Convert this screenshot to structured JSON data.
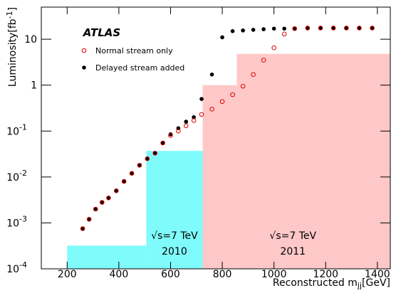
{
  "chart_data": {
    "type": "scatter",
    "annotation": "ATLAS",
    "x_label": {
      "text": "Reconstructed m",
      "sub": "jj",
      "unit": "[GeV]"
    },
    "y_label": {
      "text": "Luminosity[fb",
      "sup": "-1",
      "end": "]"
    },
    "xlim": [
      100,
      1450
    ],
    "xticks": [
      200,
      400,
      600,
      800,
      1000,
      1200,
      1400
    ],
    "ylim": [
      0.0001,
      50
    ],
    "log_y": true,
    "yticks": [
      {
        "value": 0.0001,
        "label": "10",
        "exponent": "-4"
      },
      {
        "value": 0.001,
        "label": "10",
        "exponent": "-3"
      },
      {
        "value": 0.01,
        "label": "10",
        "exponent": "-2"
      },
      {
        "value": 0.1,
        "label": "10",
        "exponent": "-1"
      },
      1,
      10
    ],
    "regions": [
      {
        "color": "#80fbfb",
        "label": "√s=7 TeV",
        "period": "2010",
        "steps": [
          {
            "x0": 200,
            "x1": 506,
            "y": 0.00032
          },
          {
            "x0": 506,
            "x1": 724,
            "y": 0.037
          }
        ]
      },
      {
        "color": "#ffc8c8",
        "label": "√s=7 TeV",
        "period": "2011",
        "steps": [
          {
            "x0": 724,
            "x1": 856,
            "y": 1
          },
          {
            "x0": 856,
            "x1": 1450,
            "y": 4.8
          }
        ]
      }
    ],
    "x": [
      260,
      285,
      310,
      335,
      360,
      390,
      420,
      450,
      480,
      510,
      540,
      570,
      600,
      630,
      660,
      690,
      720,
      760,
      800,
      840,
      880,
      920,
      960,
      1000,
      1040,
      1080,
      1130,
      1180,
      1230,
      1280,
      1330,
      1380
    ],
    "series": [
      {
        "name": "Delayed stream added",
        "color": "#000000",
        "marker": "filled",
        "values": [
          0.00075,
          0.0012,
          0.002,
          0.0028,
          0.0035,
          0.005,
          0.008,
          0.012,
          0.018,
          0.025,
          0.033,
          0.055,
          0.085,
          0.115,
          0.16,
          0.2,
          0.5,
          1.7,
          11,
          15,
          15.5,
          16,
          16.5,
          17,
          17,
          17,
          17.5,
          17.5,
          17.5,
          17.5,
          17.5,
          17.5
        ]
      },
      {
        "name": "Normal stream only",
        "color": "#e00000",
        "marker": "open",
        "values": [
          0.00075,
          0.0012,
          0.002,
          0.0028,
          0.0035,
          0.005,
          0.008,
          0.012,
          0.018,
          0.025,
          0.033,
          0.055,
          0.08,
          0.1,
          0.13,
          0.17,
          0.23,
          0.3,
          0.44,
          0.62,
          0.95,
          1.7,
          3.5,
          6.5,
          13,
          17,
          17.5,
          17.5,
          17.5,
          17.5,
          17.5,
          17.5
        ]
      }
    ]
  }
}
